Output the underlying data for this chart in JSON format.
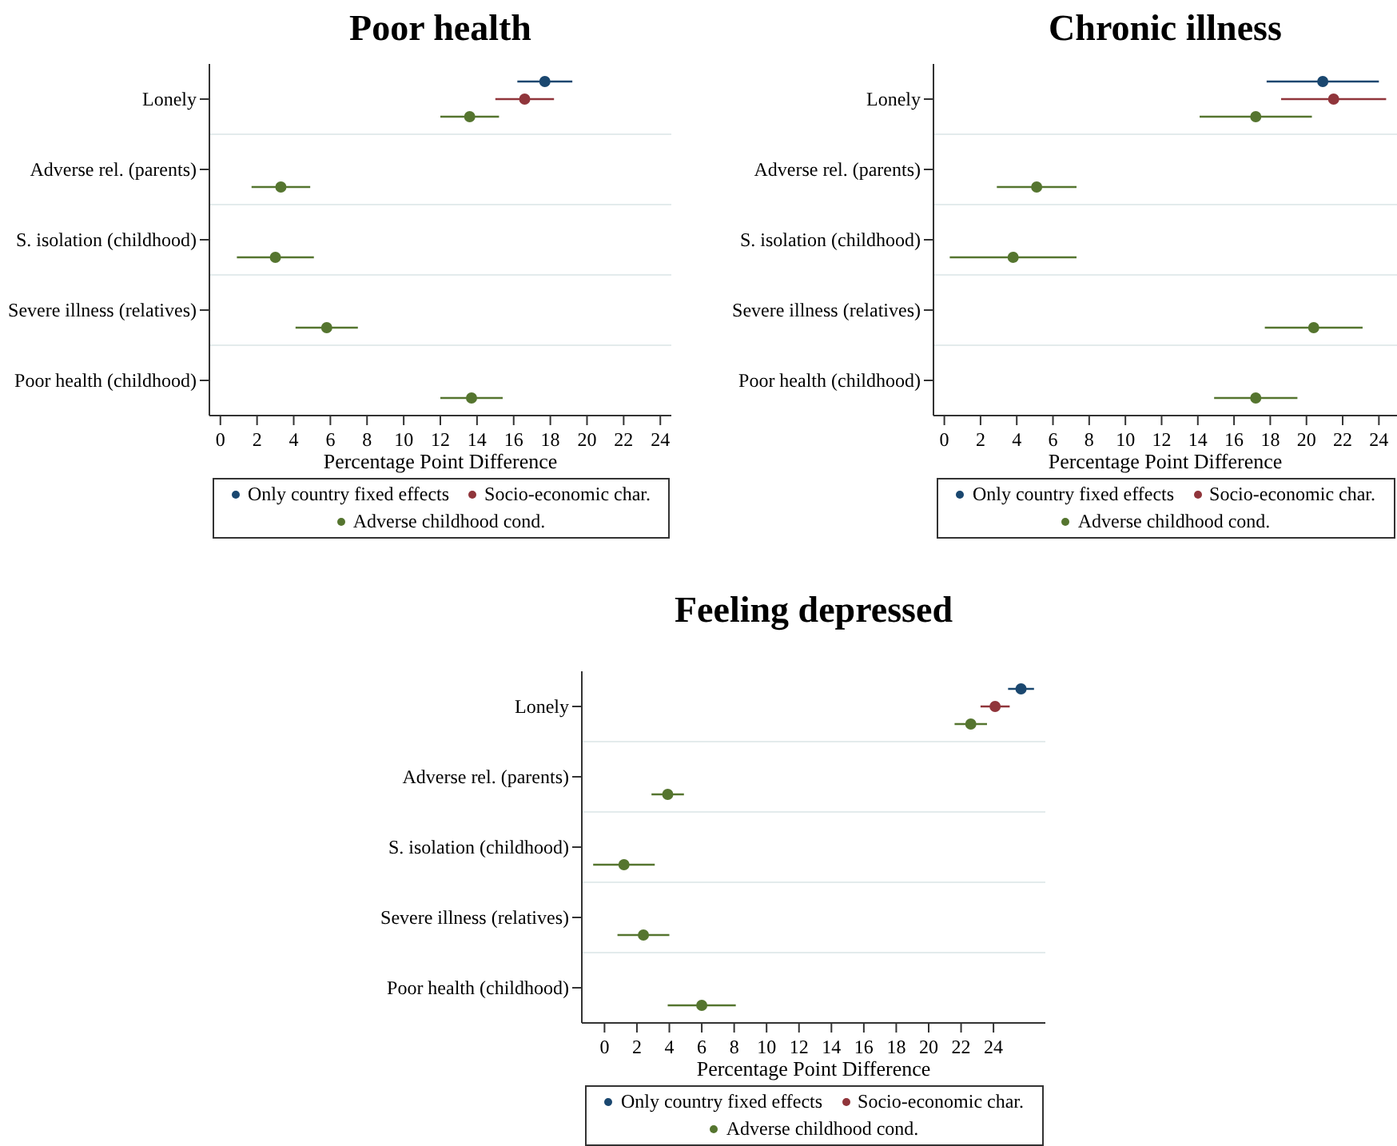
{
  "chart_data": [
    {
      "type": "scatter",
      "title": "Poor health",
      "xlabel": "Percentage Point Difference",
      "orientation": "horizontal",
      "categories": [
        "Lonely",
        "Adverse rel. (parents)",
        "S. isolation (childhood)",
        "Severe illness (relatives)",
        "Poor health (childhood)"
      ],
      "series": [
        {
          "name": "Only country fixed effects",
          "color": "#1a476f",
          "values": [
            17.7,
            null,
            null,
            null,
            null
          ],
          "errors": [
            1.5,
            null,
            null,
            null,
            null
          ]
        },
        {
          "name": "Socio-economic char.",
          "color": "#90353b",
          "values": [
            16.6,
            null,
            null,
            null,
            null
          ],
          "errors": [
            1.6,
            null,
            null,
            null,
            null
          ]
        },
        {
          "name": "Adverse childhood cond.",
          "color": "#55752f",
          "values": [
            13.6,
            3.3,
            3.0,
            5.8,
            13.7
          ],
          "errors": [
            1.6,
            1.6,
            2.1,
            1.7,
            1.7
          ]
        }
      ],
      "xlim": [
        -0.6,
        24.6
      ],
      "xticks": [
        0,
        2,
        4,
        6,
        8,
        10,
        12,
        14,
        16,
        18,
        20,
        22,
        24
      ],
      "grid": "y",
      "legend": "bottom",
      "marker": "circle"
    },
    {
      "type": "scatter",
      "title": "Chronic illness",
      "xlabel": "Percentage Point Difference",
      "orientation": "horizontal",
      "categories": [
        "Lonely",
        "Adverse rel. (parents)",
        "S. isolation (childhood)",
        "Severe illness (relatives)",
        "Poor health (childhood)"
      ],
      "series": [
        {
          "name": "Only country fixed effects",
          "color": "#1a476f",
          "values": [
            20.9,
            null,
            null,
            null,
            null
          ],
          "errors": [
            3.1,
            null,
            null,
            null,
            null
          ]
        },
        {
          "name": "Socio-economic char.",
          "color": "#90353b",
          "values": [
            21.5,
            null,
            null,
            null,
            null
          ],
          "errors": [
            2.9,
            null,
            null,
            null,
            null
          ]
        },
        {
          "name": "Adverse childhood cond.",
          "color": "#55752f",
          "values": [
            17.2,
            5.1,
            3.8,
            20.4,
            17.2
          ],
          "errors": [
            3.1,
            2.2,
            3.5,
            2.7,
            2.3
          ]
        }
      ],
      "xlim": [
        -0.6,
        25
      ],
      "xticks": [
        0,
        2,
        4,
        6,
        8,
        10,
        12,
        14,
        16,
        18,
        20,
        22,
        24
      ],
      "grid": "y",
      "legend": "bottom",
      "marker": "circle"
    },
    {
      "type": "scatter",
      "title": "Feeling depressed",
      "xlabel": "Percentage Point Difference",
      "orientation": "horizontal",
      "categories": [
        "Lonely",
        "Adverse rel. (parents)",
        "S. isolation (childhood)",
        "Severe illness (relatives)",
        "Poor health (childhood)"
      ],
      "series": [
        {
          "name": "Only country fixed effects",
          "color": "#1a476f",
          "values": [
            25.7,
            null,
            null,
            null,
            null
          ],
          "errors": [
            0.8,
            null,
            null,
            null,
            null
          ]
        },
        {
          "name": "Socio-economic char.",
          "color": "#90353b",
          "values": [
            24.1,
            null,
            null,
            null,
            null
          ],
          "errors": [
            0.9,
            null,
            null,
            null,
            null
          ]
        },
        {
          "name": "Adverse childhood cond.",
          "color": "#55752f",
          "values": [
            22.6,
            3.9,
            1.2,
            2.4,
            6.0
          ],
          "errors": [
            1.0,
            1.0,
            1.9,
            1.6,
            2.1
          ]
        }
      ],
      "xlim": [
        -1.4,
        27.2
      ],
      "xticks": [
        0,
        2,
        4,
        6,
        8,
        10,
        12,
        14,
        16,
        18,
        20,
        22,
        24
      ],
      "grid": "y",
      "legend": "bottom",
      "marker": "circle"
    }
  ]
}
